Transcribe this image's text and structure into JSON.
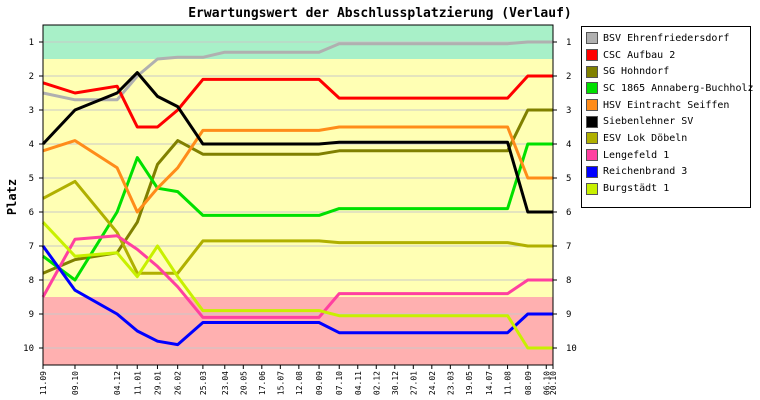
{
  "chart_data": {
    "type": "line",
    "title": "Erwartungswert der Abschlussplatzierung (Verlauf)",
    "xlabel": "",
    "ylabel": "Platz",
    "ylim": [
      10.5,
      0.5
    ],
    "y_reversed": true,
    "y_ticks": [
      1,
      2,
      3,
      4,
      5,
      6,
      7,
      8,
      9,
      10
    ],
    "bands": [
      {
        "from": 0.5,
        "to": 1.5,
        "color": "#a8f0c8"
      },
      {
        "from": 1.5,
        "to": 8.5,
        "color": "#ffffb4"
      },
      {
        "from": 8.5,
        "to": 10.5,
        "color": "#ffb0b0"
      }
    ],
    "x": [
      "11.09",
      "09.10",
      "04.12",
      "11.01",
      "29.01",
      "26.02",
      "25.03",
      "23.04",
      "20.05",
      "17.06",
      "15.07",
      "12.08",
      "09.09",
      "07.10",
      "04.11",
      "02.12",
      "30.12",
      "27.01",
      "24.02",
      "23.03",
      "19.05",
      "14.07",
      "11.08",
      "08.09",
      "06.10",
      "20.10"
    ],
    "x_positions": [
      0,
      1.9,
      4.4,
      5.6,
      6.8,
      8.0,
      9.5,
      10.8,
      11.9,
      13.0,
      14.1,
      15.2,
      16.4,
      17.6,
      18.7,
      19.8,
      20.9,
      22.0,
      23.1,
      24.2,
      25.3,
      26.5,
      27.6,
      28.8,
      29.9,
      30.3
    ],
    "series": [
      {
        "name": "BSV Ehrenfriedersdorf",
        "color": "#b0b0b0",
        "values": [
          2.5,
          2.7,
          2.7,
          2.0,
          1.5,
          1.45,
          1.45,
          1.3,
          1.3,
          1.3,
          1.3,
          1.3,
          1.3,
          1.05,
          1.05,
          1.05,
          1.05,
          1.05,
          1.05,
          1.05,
          1.05,
          1.05,
          1.05,
          1.0,
          1.0,
          1.0
        ]
      },
      {
        "name": "CSC Aufbau 2",
        "color": "#ff0000",
        "values": [
          2.2,
          2.5,
          2.3,
          3.5,
          3.5,
          3.0,
          2.1,
          2.1,
          2.1,
          2.1,
          2.1,
          2.1,
          2.1,
          2.65,
          2.65,
          2.65,
          2.65,
          2.65,
          2.65,
          2.65,
          2.65,
          2.65,
          2.65,
          2.0,
          2.0,
          2.0
        ]
      },
      {
        "name": "SG Hohndorf",
        "color": "#808000",
        "values": [
          7.8,
          7.4,
          7.2,
          6.3,
          4.6,
          3.9,
          4.3,
          4.3,
          4.3,
          4.3,
          4.3,
          4.3,
          4.3,
          4.2,
          4.2,
          4.2,
          4.2,
          4.2,
          4.2,
          4.2,
          4.2,
          4.2,
          4.2,
          3.0,
          3.0,
          3.0
        ]
      },
      {
        "name": "SC 1865 Annaberg-Buchholz",
        "color": "#00e000",
        "values": [
          7.3,
          8.0,
          6.0,
          4.4,
          5.3,
          5.4,
          6.1,
          6.1,
          6.1,
          6.1,
          6.1,
          6.1,
          6.1,
          5.9,
          5.9,
          5.9,
          5.9,
          5.9,
          5.9,
          5.9,
          5.9,
          5.9,
          5.9,
          4.0,
          4.0,
          4.0
        ]
      },
      {
        "name": "HSV Eintracht Seiffen",
        "color": "#ff8c1a",
        "values": [
          4.2,
          3.9,
          4.7,
          6.0,
          5.3,
          4.7,
          3.6,
          3.6,
          3.6,
          3.6,
          3.6,
          3.6,
          3.6,
          3.5,
          3.5,
          3.5,
          3.5,
          3.5,
          3.5,
          3.5,
          3.5,
          3.5,
          3.5,
          5.0,
          5.0,
          5.0
        ]
      },
      {
        "name": "Siebenlehner SV",
        "color": "#000000",
        "values": [
          4.0,
          3.0,
          2.5,
          1.9,
          2.6,
          2.9,
          4.0,
          4.0,
          4.0,
          4.0,
          4.0,
          4.0,
          4.0,
          3.95,
          3.95,
          3.95,
          3.95,
          3.95,
          3.95,
          3.95,
          3.95,
          3.95,
          3.95,
          6.0,
          6.0,
          6.0
        ]
      },
      {
        "name": "ESV Lok Döbeln",
        "color": "#b0b000",
        "values": [
          5.6,
          5.1,
          6.6,
          7.8,
          7.8,
          7.8,
          6.85,
          6.85,
          6.85,
          6.85,
          6.85,
          6.85,
          6.85,
          6.9,
          6.9,
          6.9,
          6.9,
          6.9,
          6.9,
          6.9,
          6.9,
          6.9,
          6.9,
          7.0,
          7.0,
          7.0
        ]
      },
      {
        "name": "Lengefeld 1",
        "color": "#ff40a0",
        "values": [
          8.5,
          6.8,
          6.7,
          7.1,
          7.6,
          8.2,
          9.1,
          9.1,
          9.1,
          9.1,
          9.1,
          9.1,
          9.1,
          8.4,
          8.4,
          8.4,
          8.4,
          8.4,
          8.4,
          8.4,
          8.4,
          8.4,
          8.4,
          8.0,
          8.0,
          8.0
        ]
      },
      {
        "name": "Reichenbrand 3",
        "color": "#0000ff",
        "values": [
          7.0,
          8.3,
          9.0,
          9.5,
          9.8,
          9.9,
          9.25,
          9.25,
          9.25,
          9.25,
          9.25,
          9.25,
          9.25,
          9.55,
          9.55,
          9.55,
          9.55,
          9.55,
          9.55,
          9.55,
          9.55,
          9.55,
          9.55,
          9.0,
          9.0,
          9.0
        ]
      },
      {
        "name": "Burgstädt 1",
        "color": "#c8f000",
        "values": [
          6.3,
          7.3,
          7.2,
          7.9,
          7.0,
          7.9,
          8.9,
          8.9,
          8.9,
          8.9,
          8.9,
          8.9,
          8.9,
          9.05,
          9.05,
          9.05,
          9.05,
          9.05,
          9.05,
          9.05,
          9.05,
          9.05,
          9.05,
          10.0,
          10.0,
          10.0
        ]
      }
    ]
  }
}
